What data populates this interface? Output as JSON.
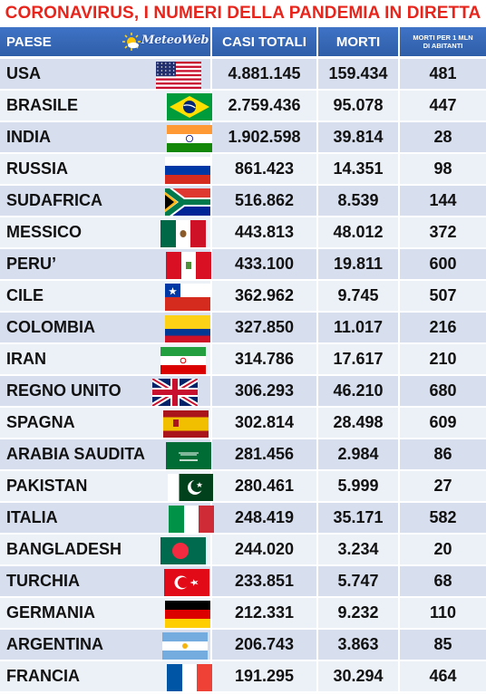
{
  "title": "CORONAVIRUS, I NUMERI DELLA PANDEMIA IN DIRETTA",
  "logo": {
    "text": "MeteoWeb",
    "icon": "sun-cloud-logo-icon"
  },
  "headers": {
    "country": "PAESE",
    "cases": "CASI TOTALI",
    "deaths": "MORTI",
    "per_million_line1": "MORTI PER 1 MLN",
    "per_million_line2": "DI ABITANTI"
  },
  "rows": [
    {
      "country": "USA",
      "cases": "4.881.145",
      "deaths": "159.434",
      "per_million": "481",
      "flag": "usa-flag-icon"
    },
    {
      "country": "BRASILE",
      "cases": "2.759.436",
      "deaths": "95.078",
      "per_million": "447",
      "flag": "brazil-flag-icon"
    },
    {
      "country": "INDIA",
      "cases": "1.902.598",
      "deaths": "39.814",
      "per_million": "28",
      "flag": "india-flag-icon"
    },
    {
      "country": "RUSSIA",
      "cases": "861.423",
      "deaths": "14.351",
      "per_million": "98",
      "flag": "russia-flag-icon"
    },
    {
      "country": "SUDAFRICA",
      "cases": "516.862",
      "deaths": "8.539",
      "per_million": "144",
      "flag": "south-africa-flag-icon"
    },
    {
      "country": "MESSICO",
      "cases": "443.813",
      "deaths": "48.012",
      "per_million": "372",
      "flag": "mexico-flag-icon"
    },
    {
      "country": "PERU’",
      "cases": "433.100",
      "deaths": "19.811",
      "per_million": "600",
      "flag": "peru-flag-icon"
    },
    {
      "country": "CILE",
      "cases": "362.962",
      "deaths": "9.745",
      "per_million": "507",
      "flag": "chile-flag-icon"
    },
    {
      "country": "COLOMBIA",
      "cases": "327.850",
      "deaths": "11.017",
      "per_million": "216",
      "flag": "colombia-flag-icon"
    },
    {
      "country": "IRAN",
      "cases": "314.786",
      "deaths": "17.617",
      "per_million": "210",
      "flag": "iran-flag-icon"
    },
    {
      "country": "REGNO UNITO",
      "cases": "306.293",
      "deaths": "46.210",
      "per_million": "680",
      "flag": "uk-flag-icon"
    },
    {
      "country": "SPAGNA",
      "cases": "302.814",
      "deaths": "28.498",
      "per_million": "609",
      "flag": "spain-flag-icon"
    },
    {
      "country": "ARABIA SAUDITA",
      "cases": "281.456",
      "deaths": "2.984",
      "per_million": "86",
      "flag": "saudi-arabia-flag-icon"
    },
    {
      "country": "PAKISTAN",
      "cases": "280.461",
      "deaths": "5.999",
      "per_million": "27",
      "flag": "pakistan-flag-icon"
    },
    {
      "country": "ITALIA",
      "cases": "248.419",
      "deaths": "35.171",
      "per_million": "582",
      "flag": "italy-flag-icon"
    },
    {
      "country": "BANGLADESH",
      "cases": "244.020",
      "deaths": "3.234",
      "per_million": "20",
      "flag": "bangladesh-flag-icon"
    },
    {
      "country": "TURCHIA",
      "cases": "233.851",
      "deaths": "5.747",
      "per_million": "68",
      "flag": "turkey-flag-icon"
    },
    {
      "country": "GERMANIA",
      "cases": "212.331",
      "deaths": "9.232",
      "per_million": "110",
      "flag": "germany-flag-icon"
    },
    {
      "country": "ARGENTINA",
      "cases": "206.743",
      "deaths": "3.863",
      "per_million": "85",
      "flag": "argentina-flag-icon"
    },
    {
      "country": "FRANCIA",
      "cases": "191.295",
      "deaths": "30.294",
      "per_million": "464",
      "flag": "france-flag-icon"
    }
  ],
  "colors": {
    "title": "#e8251c",
    "header_bg": "#3566b8",
    "row_odd": "#d7deee",
    "row_even": "#ecf0f7"
  }
}
